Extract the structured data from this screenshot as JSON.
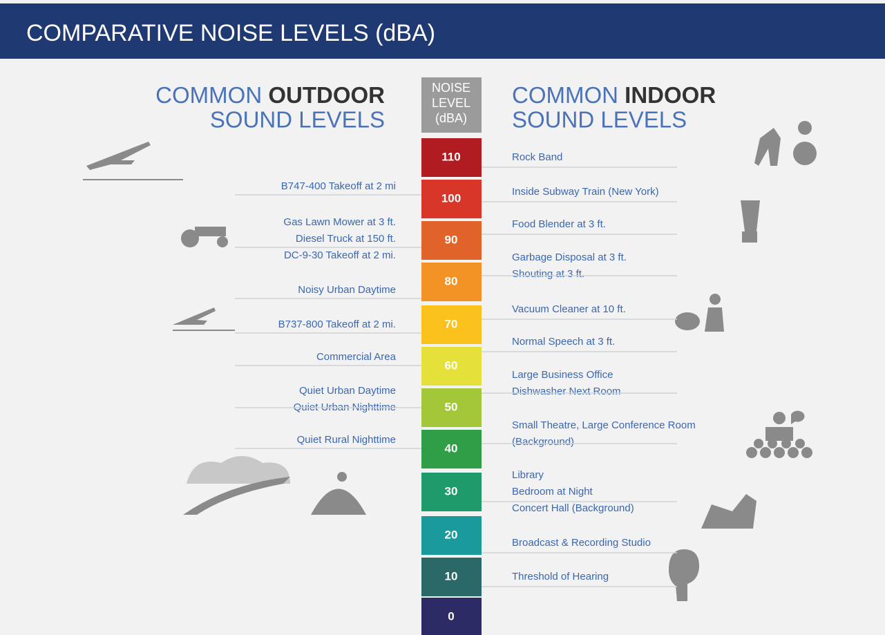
{
  "header": {
    "title": "COMPARATIVE NOISE LEVELS (dBA)"
  },
  "outdoor": {
    "heading_light": "COMMON",
    "heading_bold": "OUTDOOR",
    "heading_line2": "SOUND LEVELS",
    "items": [
      [
        "B747-400 Takeoff at 2 mi"
      ],
      [
        "Gas Lawn Mower at 3 ft.",
        "Diesel Truck at 150 ft.",
        "DC-9-30 Takeoff at 2 mi."
      ],
      [
        "Noisy Urban Daytime"
      ],
      [
        "B737-800 Takeoff at 2 mi."
      ],
      [
        "Commercial Area"
      ],
      [
        "Quiet Urban Daytime",
        "Quiet Urban Nighttime"
      ],
      [
        "Quiet Rural Nighttime"
      ]
    ]
  },
  "scale": {
    "heading": [
      "NOISE",
      "LEVEL",
      "(dBA)"
    ],
    "levels": [
      110,
      100,
      90,
      80,
      70,
      60,
      50,
      40,
      30,
      20,
      10,
      0
    ],
    "colors": [
      "#b01c20",
      "#d9362a",
      "#e0642a",
      "#f39325",
      "#fbc21d",
      "#e6e03a",
      "#a4c639",
      "#2f9e47",
      "#1f9a6a",
      "#1a9a9a",
      "#2b6868",
      "#2d2b66"
    ]
  },
  "indoor": {
    "heading_light": "COMMON",
    "heading_bold": "INDOOR",
    "heading_line2": "SOUND LEVELS",
    "items": [
      [
        "Rock Band"
      ],
      [
        "Inside Subway Train (New York)"
      ],
      [
        "Food Blender at 3 ft."
      ],
      [
        "Garbage Disposal at 3 ft.",
        "Shouting at 3 ft."
      ],
      [
        "Vacuum Cleaner at 10 ft."
      ],
      [
        "Normal Speech at 3 ft."
      ],
      [
        "Large Business Office",
        "Dishwasher Next Room"
      ],
      [
        "Small Theatre, Large Conference Room",
        "(Background)"
      ],
      [
        "Library",
        "Bedroom at Night",
        "Concert Hall (Background)"
      ],
      [
        "Broadcast & Recording Studio"
      ],
      [
        "Threshold of Hearing"
      ]
    ]
  }
}
